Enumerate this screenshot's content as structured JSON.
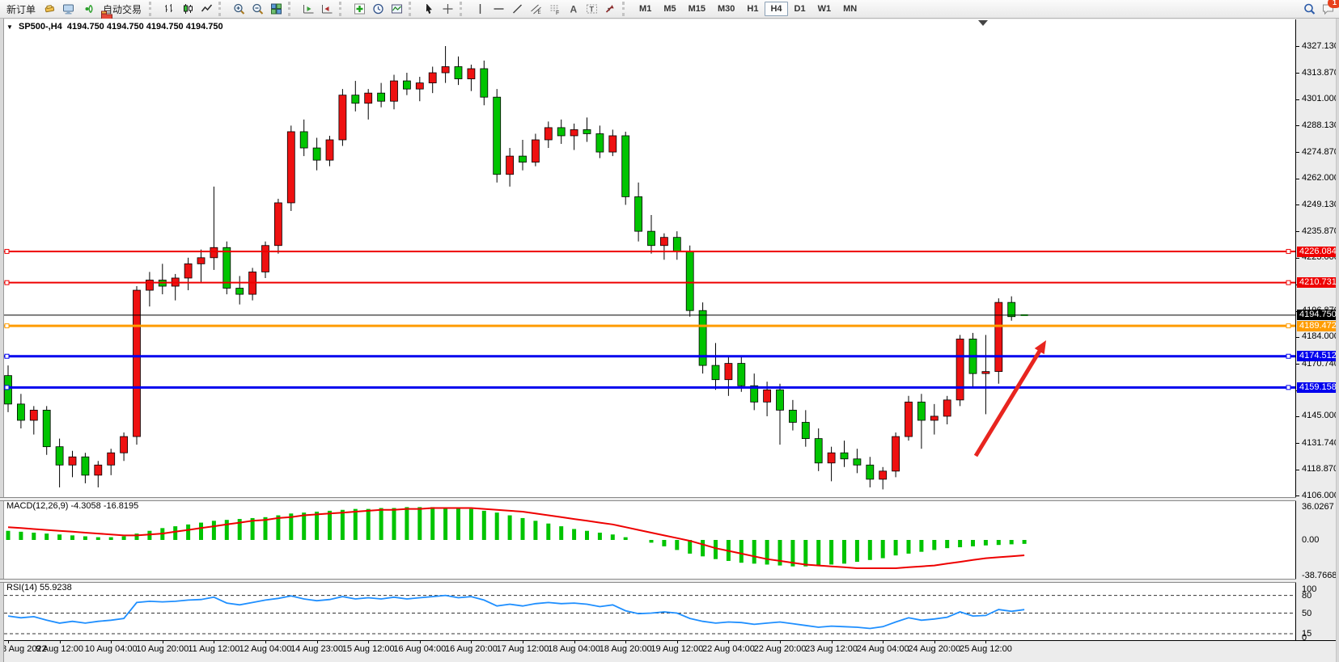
{
  "toolbar": {
    "chat_badge": "1",
    "items": [
      {
        "t": "btn",
        "name": "new-order",
        "label": "新订单"
      },
      {
        "t": "ico",
        "name": "gold-ingot"
      },
      {
        "t": "ico",
        "name": "metaeditor"
      },
      {
        "t": "ico",
        "name": "signal"
      },
      {
        "t": "btn",
        "name": "autotrading",
        "label": "自动交易",
        "icon": "autotrade"
      },
      {
        "t": "sep"
      },
      {
        "t": "ico",
        "name": "bar-chart"
      },
      {
        "t": "ico",
        "name": "candlestick-chart"
      },
      {
        "t": "ico",
        "name": "line-chart"
      },
      {
        "t": "sep"
      },
      {
        "t": "ico",
        "name": "zoom-in"
      },
      {
        "t": "ico",
        "name": "zoom-out"
      },
      {
        "t": "ico",
        "name": "tile-windows"
      },
      {
        "t": "sep"
      },
      {
        "t": "ico",
        "name": "auto-scroll"
      },
      {
        "t": "ico",
        "name": "chart-shift"
      },
      {
        "t": "sep"
      },
      {
        "t": "ico",
        "name": "indicators",
        "dd": true
      },
      {
        "t": "ico",
        "name": "periods",
        "dd": true
      },
      {
        "t": "ico",
        "name": "templates",
        "dd": true
      },
      {
        "t": "sep"
      },
      {
        "t": "ico",
        "name": "cursor"
      },
      {
        "t": "ico",
        "name": "crosshair"
      },
      {
        "t": "sep"
      },
      {
        "t": "ico",
        "name": "vertical-line"
      },
      {
        "t": "ico",
        "name": "horizontal-line"
      },
      {
        "t": "ico",
        "name": "trendline"
      },
      {
        "t": "ico",
        "name": "equidistant-channel"
      },
      {
        "t": "ico",
        "name": "fibonacci"
      },
      {
        "t": "ico",
        "name": "text"
      },
      {
        "t": "ico",
        "name": "text-label"
      },
      {
        "t": "ico",
        "name": "arrows",
        "dd": true
      },
      {
        "t": "sep"
      },
      {
        "t": "tf",
        "label": "M1"
      },
      {
        "t": "tf",
        "label": "M5"
      },
      {
        "t": "tf",
        "label": "M15"
      },
      {
        "t": "tf",
        "label": "M30"
      },
      {
        "t": "tf",
        "label": "H1"
      },
      {
        "t": "tf",
        "label": "H4",
        "active": true
      },
      {
        "t": "tf",
        "label": "D1"
      },
      {
        "t": "tf",
        "label": "W1"
      },
      {
        "t": "tf",
        "label": "MN"
      },
      {
        "t": "spacer"
      },
      {
        "t": "ico",
        "name": "search"
      },
      {
        "t": "ico",
        "name": "chat",
        "badge": "1"
      }
    ]
  },
  "chart_data": [
    {
      "type": "candlestick",
      "title_symbol": "SP500-,H4",
      "title_ohlc": "4194.750 4194.750 4194.750 4194.750",
      "bull_color": "#ee1111",
      "bear_color": "#00c400",
      "y_range": [
        4105.2,
        4339.9
      ],
      "price_ticks": [
        "4327.130",
        "4313.870",
        "4301.000",
        "4288.130",
        "4274.870",
        "4262.000",
        "4249.130",
        "4235.870",
        "4223.000",
        "4209.740",
        "4196.870",
        "4184.000",
        "4170.740",
        "4157.870",
        "4145.000",
        "4131.740",
        "4118.870",
        "4106.000"
      ],
      "x_labels": [
        "8 Aug 2022",
        "9 Aug 12:00",
        "10 Aug 04:00",
        "10 Aug 20:00",
        "11 Aug 12:00",
        "12 Aug 04:00",
        "14 Aug 23:00",
        "15 Aug 12:00",
        "16 Aug 04:00",
        "16 Aug 20:00",
        "17 Aug 12:00",
        "18 Aug 04:00",
        "18 Aug 20:00",
        "19 Aug 12:00",
        "22 Aug 04:00",
        "22 Aug 20:00",
        "23 Aug 12:00",
        "24 Aug 04:00",
        "24 Aug 20:00",
        "25 Aug 12:00"
      ],
      "levels": [
        {
          "price": 4226.084,
          "label": "4226.084",
          "color": "#ee0000",
          "width": 2,
          "handles": true
        },
        {
          "price": 4210.731,
          "label": "4210.731",
          "color": "#ee0000",
          "width": 2,
          "handles": true
        },
        {
          "price": 4194.75,
          "label": "4194.750",
          "color": "#000000",
          "width": 1,
          "handles": false
        },
        {
          "price": 4189.472,
          "label": "4189.472",
          "color": "#ff9c00",
          "width": 3,
          "handles": true
        },
        {
          "price": 4174.512,
          "label": "4174.512",
          "color": "#0000ee",
          "width": 3,
          "handles": true
        },
        {
          "price": 4159.158,
          "label": "4159.158",
          "color": "#0000ee",
          "width": 3,
          "handles": true
        }
      ],
      "candles": [
        [
          4165,
          4170,
          4147,
          4151
        ],
        [
          4151,
          4156,
          4139,
          4143
        ],
        [
          4143,
          4150,
          4136,
          4148
        ],
        [
          4148,
          4150,
          4126,
          4130
        ],
        [
          4130,
          4134,
          4110,
          4121
        ],
        [
          4121,
          4128,
          4115,
          4125
        ],
        [
          4125,
          4127,
          4112,
          4116
        ],
        [
          4116,
          4123,
          4110,
          4121
        ],
        [
          4121,
          4129,
          4116,
          4127
        ],
        [
          4127,
          4137,
          4123,
          4135
        ],
        [
          4135,
          4209,
          4131,
          4207
        ],
        [
          4207,
          4216,
          4199,
          4212
        ],
        [
          4212,
          4220,
          4205,
          4209
        ],
        [
          4209,
          4215,
          4202,
          4213
        ],
        [
          4213,
          4223,
          4207,
          4220
        ],
        [
          4220,
          4227,
          4211,
          4223
        ],
        [
          4223,
          4258,
          4217,
          4228
        ],
        [
          4228,
          4231,
          4205,
          4208
        ],
        [
          4208,
          4214,
          4200,
          4205
        ],
        [
          4205,
          4218,
          4202,
          4216
        ],
        [
          4216,
          4231,
          4213,
          4229
        ],
        [
          4229,
          4252,
          4225,
          4250
        ],
        [
          4250,
          4288,
          4246,
          4285
        ],
        [
          4285,
          4291,
          4273,
          4277
        ],
        [
          4277,
          4282,
          4266,
          4271
        ],
        [
          4271,
          4283,
          4268,
          4281
        ],
        [
          4281,
          4306,
          4278,
          4303
        ],
        [
          4303,
          4310,
          4295,
          4299
        ],
        [
          4299,
          4306,
          4291,
          4304
        ],
        [
          4304,
          4309,
          4297,
          4300
        ],
        [
          4300,
          4313,
          4296,
          4310
        ],
        [
          4310,
          4314,
          4303,
          4306
        ],
        [
          4306,
          4312,
          4300,
          4309
        ],
        [
          4309,
          4317,
          4304,
          4314
        ],
        [
          4314,
          4327.13,
          4309,
          4317
        ],
        [
          4317,
          4322,
          4308,
          4311
        ],
        [
          4311,
          4318,
          4305,
          4316
        ],
        [
          4316,
          4320,
          4298,
          4302
        ],
        [
          4302,
          4306,
          4260,
          4264
        ],
        [
          4264,
          4277,
          4258,
          4273
        ],
        [
          4273,
          4281,
          4266,
          4270
        ],
        [
          4270,
          4284,
          4268,
          4281
        ],
        [
          4281,
          4290,
          4277,
          4287
        ],
        [
          4287,
          4291,
          4279,
          4283
        ],
        [
          4283,
          4289,
          4276,
          4286
        ],
        [
          4286,
          4292,
          4280,
          4284
        ],
        [
          4284,
          4288,
          4272,
          4275
        ],
        [
          4275,
          4286,
          4273,
          4283
        ],
        [
          4283,
          4285,
          4249,
          4253
        ],
        [
          4253,
          4260,
          4231,
          4236
        ],
        [
          4236,
          4244,
          4225,
          4229
        ],
        [
          4229,
          4235,
          4222,
          4233
        ],
        [
          4233,
          4236,
          4222,
          4226
        ],
        [
          4226,
          4229,
          4194,
          4197
        ],
        [
          4197,
          4201,
          4166,
          4170
        ],
        [
          4170,
          4181,
          4158,
          4163
        ],
        [
          4163,
          4174,
          4155,
          4171
        ],
        [
          4171,
          4175,
          4157,
          4160
        ],
        [
          4160,
          4166,
          4148,
          4152
        ],
        [
          4152,
          4162,
          4145,
          4158
        ],
        [
          4158,
          4161,
          4131,
          4148
        ],
        [
          4148,
          4153,
          4138,
          4142
        ],
        [
          4142,
          4148,
          4130,
          4134
        ],
        [
          4134,
          4139,
          4118,
          4122
        ],
        [
          4122,
          4130,
          4113,
          4127
        ],
        [
          4127,
          4133,
          4120,
          4124
        ],
        [
          4124,
          4129,
          4117,
          4121
        ],
        [
          4121,
          4125,
          4110,
          4114
        ],
        [
          4114,
          4120,
          4109,
          4118
        ],
        [
          4118,
          4137,
          4115,
          4135
        ],
        [
          4135,
          4155,
          4133,
          4152
        ],
        [
          4152,
          4156,
          4129,
          4143
        ],
        [
          4143,
          4151,
          4136,
          4145
        ],
        [
          4145,
          4155,
          4141,
          4153
        ],
        [
          4153,
          4185,
          4150,
          4183
        ],
        [
          4183,
          4186,
          4159,
          4166
        ],
        [
          4166,
          4185,
          4146,
          4167
        ],
        [
          4167,
          4203,
          4161,
          4201
        ],
        [
          4201,
          4204,
          4192,
          4194
        ],
        [
          4194.75,
          4194.75,
          4194.75,
          4194.75
        ]
      ],
      "annotations": {
        "arrow": {
          "from": [
            1206,
            564
          ],
          "to": [
            1293,
            421
          ],
          "color": "#e8251f",
          "width": 5
        },
        "shift_marker_x": 1215
      }
    },
    {
      "type": "bar",
      "label": "MACD(12,26,9) -4.3058 -16.8195",
      "bar_color": "#00c400",
      "signal_color": "#ee0000",
      "axis_labels": [
        "36.0267",
        "0.00",
        "-38.7668"
      ],
      "axis_values": [
        36.0267,
        0,
        -38.7668
      ],
      "histogram": [
        10,
        9,
        8,
        7,
        6,
        5,
        4,
        3,
        3,
        4,
        7,
        10,
        13,
        15,
        17,
        19,
        21,
        22,
        23,
        24,
        25,
        27,
        29,
        30,
        31,
        32,
        33,
        34,
        34,
        35,
        35,
        36,
        36,
        36,
        35,
        35,
        34,
        32,
        30,
        27,
        24,
        21,
        18,
        15,
        12,
        10,
        8,
        6,
        3,
        0,
        -3,
        -7,
        -11,
        -15,
        -18,
        -21,
        -23,
        -25,
        -26,
        -27,
        -28,
        -29,
        -29,
        -28,
        -27,
        -26,
        -24,
        -22,
        -20,
        -17,
        -15,
        -13,
        -11,
        -9,
        -8,
        -7,
        -6,
        -5.5,
        -4.8,
        -4.31
      ],
      "signal": [
        14,
        13,
        12,
        11,
        10,
        9,
        8,
        7,
        6,
        5,
        5,
        6,
        7,
        9,
        11,
        13,
        15,
        17,
        19,
        21,
        22,
        24,
        25,
        27,
        28,
        29,
        30,
        31,
        32,
        33,
        33,
        34,
        34,
        35,
        35,
        35,
        35,
        34,
        33,
        32,
        31,
        29,
        27,
        25,
        23,
        21,
        19,
        17,
        14,
        11,
        8,
        5,
        2,
        -1,
        -5,
        -9,
        -12,
        -15,
        -18,
        -21,
        -23,
        -25,
        -27,
        -28,
        -29,
        -30,
        -31,
        -31,
        -31,
        -31,
        -30,
        -29,
        -28,
        -26,
        -24,
        -22,
        -20,
        -19,
        -18,
        -16.82
      ]
    },
    {
      "type": "line",
      "label": "RSI(14) 55.9238",
      "line_color": "#1f8fff",
      "axis_labels": [
        "100",
        "80",
        "50",
        "15",
        "0"
      ],
      "axis_values": [
        100,
        80,
        50,
        15,
        0
      ],
      "level_lines": [
        80,
        50,
        15
      ],
      "values": [
        45,
        42,
        44,
        38,
        33,
        36,
        33,
        36,
        38,
        41,
        68,
        70,
        69,
        70,
        72,
        73,
        77,
        67,
        64,
        68,
        72,
        75,
        79,
        74,
        71,
        73,
        78,
        74,
        76,
        74,
        77,
        74,
        76,
        78,
        80,
        76,
        78,
        72,
        62,
        65,
        62,
        66,
        68,
        66,
        67,
        65,
        61,
        64,
        54,
        49,
        50,
        52,
        50,
        41,
        36,
        33,
        35,
        34,
        31,
        33,
        35,
        32,
        29,
        26,
        28,
        27,
        26,
        24,
        27,
        35,
        42,
        38,
        40,
        43,
        52,
        45,
        46,
        56,
        53,
        55.92
      ]
    }
  ]
}
